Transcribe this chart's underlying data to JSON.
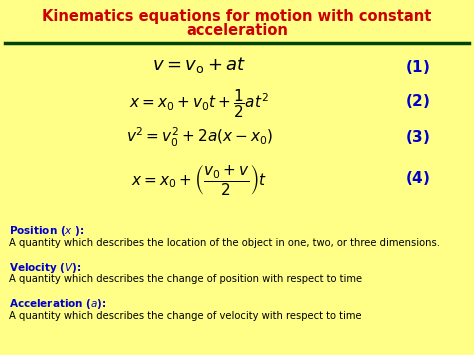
{
  "bg_color": "#FFFF88",
  "title_line1": "Kinematics equations for motion with constant",
  "title_line2": "acceleration",
  "title_color": "#CC0000",
  "title_fontsize": 10.5,
  "separator_color": "#004400",
  "eq_color": "#000000",
  "num_color": "#0000CC",
  "eq_fontsize": 11,
  "num_fontsize": 10,
  "def_title_color": "#0000CC",
  "def_text_color": "#000000",
  "def_title_fontsize": 7.5,
  "def_text_fontsize": 7.2,
  "pos_title": "Position ($x$ ):",
  "pos_desc": "A quantity which describes the location of the object in one, two, or three dimensions.",
  "vel_title": "Velocity ($V$):",
  "vel_desc": "A quantity which describes the change of position with respect to time",
  "acc_title": "Acceleration ($a$):",
  "acc_desc": "A quantity which describes the change of velocity with respect to time"
}
